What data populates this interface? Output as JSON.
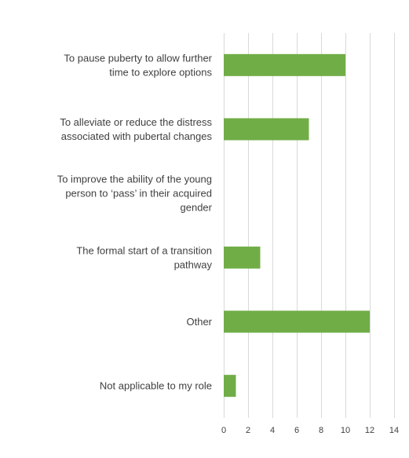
{
  "chart_data": {
    "type": "bar",
    "orientation": "horizontal",
    "categories": [
      [
        "To pause puberty to allow further",
        "time to explore options"
      ],
      [
        "To alleviate or reduce the distress",
        "associated with pubertal changes"
      ],
      [
        "To improve the ability of the young",
        "person to ‘pass’ in their acquired",
        "gender"
      ],
      [
        "The formal start of a transition",
        "pathway"
      ],
      [
        "Other"
      ],
      [
        "Not applicable to my role"
      ]
    ],
    "values": [
      10,
      7,
      0,
      3,
      12,
      1
    ],
    "xlim": [
      0,
      14
    ],
    "xticks": [
      0,
      2,
      4,
      6,
      8,
      10,
      12,
      14
    ],
    "grid": true,
    "legend": "none",
    "bar_color": "#70ad47",
    "grid_color": "#d9d9d9"
  }
}
